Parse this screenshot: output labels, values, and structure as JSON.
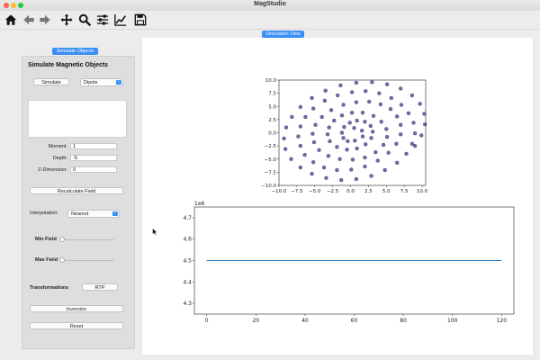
{
  "window": {
    "title": "MagStudio",
    "traffic_colors": [
      "#ff5f57",
      "#febc2e",
      "#28c840"
    ]
  },
  "toolbar": {
    "icons": [
      "home-icon",
      "back-arrow-icon",
      "forward-arrow-icon",
      "pan-icon",
      "zoom-icon",
      "configure-subplots-icon",
      "edit-axis-icon",
      "save-icon"
    ]
  },
  "tabs": {
    "sidebar_tab": "Simulate Objects",
    "view_tab": "Simulation View",
    "accent": "#3a8ef6"
  },
  "sidebar": {
    "title": "Simulate Magnetic Objects",
    "simulate_button": "Simulate",
    "object_type": "Dipole",
    "moment_label": "Moment:",
    "moment_value": "1",
    "depth_label": "Depth:",
    "depth_value": "-5",
    "zdim_label": "Z-Dimension:",
    "zdim_value": "0",
    "recalc_button": "Recalculate Field",
    "interp_label": "Interpolation:",
    "interp_value": "Nearest",
    "min_field_label": "Min Field",
    "min_field_level": 0,
    "max_field_label": "Max Field",
    "max_field_level": 0,
    "transform_label": "Transformations",
    "rtp_button": "RTP",
    "inversion_button": "Inversion",
    "reset_button": "Reset"
  },
  "chart_data": [
    {
      "type": "scatter",
      "title": "",
      "xlabel": "",
      "ylabel": "",
      "xlim": [
        -10,
        10.5
      ],
      "ylim": [
        -10,
        10
      ],
      "xticks": [
        "−10.0",
        "−7.5",
        "−5.0",
        "−2.5",
        "0.0",
        "2.5",
        "5.0",
        "7.5",
        "10.0"
      ],
      "yticks": [
        "10.0",
        "7.5",
        "5.0",
        "2.5",
        "0.0",
        "−2.5",
        "−5.0",
        "−7.5",
        "−10.0"
      ],
      "grid": false,
      "color": "#2f2f7a",
      "pattern": "spiral",
      "x": [
        0.5,
        1.6,
        1.7,
        0.6,
        -0.4,
        -1.0,
        -1.2,
        -0.9,
        -0.1,
        0.9,
        2.0,
        2.8,
        3.1,
        2.9,
        2.1,
        0.9,
        -0.5,
        -1.9,
        -2.9,
        -3.2,
        -3.0,
        -2.3,
        -1.2,
        0.2,
        1.7,
        3.2,
        4.3,
        5.0,
        5.1,
        4.6,
        3.5,
        2.0,
        0.3,
        -1.5,
        -3.1,
        -4.4,
        -5.1,
        -5.3,
        -4.9,
        -4.0,
        -2.7,
        -1.0,
        0.8,
        2.6,
        4.2,
        5.6,
        6.5,
        7.0,
        7.0,
        6.4,
        5.3,
        3.8,
        2.0,
        0.1,
        -1.9,
        -3.7,
        -5.2,
        -6.4,
        -7.0,
        -7.3,
        -7.0,
        -6.3,
        -5.2,
        -3.6,
        -1.8,
        0.2,
        2.1,
        4.0,
        5.7,
        7.1,
        8.1,
        8.8,
        9.0,
        8.6,
        7.8,
        6.5,
        4.8,
        2.9,
        0.8,
        -1.3,
        -3.4,
        -5.4,
        -7.0,
        -8.3,
        -9.1,
        -9.3,
        -9.0,
        -8.2,
        -7.0,
        -5.4,
        -3.5,
        -1.4,
        0.8,
        3.0,
        5.1,
        7.0,
        8.6,
        9.7,
        10.3,
        10.4,
        9.9,
        9.0
      ],
      "y": [
        0.9,
        0.4,
        -0.7,
        -1.5,
        -1.6,
        -1.0,
        0.0,
        1.1,
        1.9,
        2.3,
        2.1,
        1.3,
        0.2,
        -1.0,
        -2.2,
        -3.0,
        -3.2,
        -2.7,
        -1.6,
        -0.3,
        1.0,
        2.3,
        3.3,
        3.8,
        3.8,
        3.2,
        2.1,
        0.7,
        -0.8,
        -2.3,
        -3.7,
        -4.7,
        -5.1,
        -5.0,
        -4.4,
        -3.3,
        -1.8,
        -0.2,
        1.5,
        3.0,
        4.3,
        5.3,
        5.8,
        5.9,
        5.4,
        4.5,
        3.1,
        1.5,
        -0.3,
        -2.1,
        -3.8,
        -5.3,
        -6.4,
        -7.0,
        -7.1,
        -6.6,
        -5.6,
        -4.2,
        -2.5,
        -0.7,
        1.2,
        3.0,
        4.6,
        6.1,
        7.1,
        7.7,
        7.9,
        7.5,
        6.6,
        5.3,
        3.7,
        1.9,
        -0.1,
        -2.1,
        -4.0,
        -5.7,
        -7.1,
        -8.2,
        -8.8,
        -9.0,
        -8.6,
        -7.8,
        -6.6,
        -5.0,
        -3.1,
        -1.1,
        1.0,
        3.0,
        4.9,
        6.6,
        8.0,
        9.0,
        9.5,
        9.6,
        9.2,
        8.4,
        7.1,
        5.5,
        3.6,
        1.6,
        -0.5,
        -2.5
      ]
    },
    {
      "type": "line",
      "title": "",
      "xlabel": "",
      "ylabel": "",
      "offset_label": "1e6",
      "xlim": [
        -5,
        125
      ],
      "ylim": [
        4.25,
        4.75
      ],
      "xticks": [
        "0",
        "20",
        "40",
        "60",
        "80",
        "100",
        "120"
      ],
      "xtick_values": [
        0,
        20,
        40,
        60,
        80,
        100,
        120
      ],
      "yticks": [
        "4.7",
        "4.6",
        "4.5",
        "4.4",
        "4.3"
      ],
      "ytick_values": [
        4.7,
        4.6,
        4.5,
        4.4,
        4.3
      ],
      "grid": false,
      "color": "#1f77b4",
      "x": [
        0,
        120
      ],
      "y": [
        4.5,
        4.5
      ]
    }
  ]
}
